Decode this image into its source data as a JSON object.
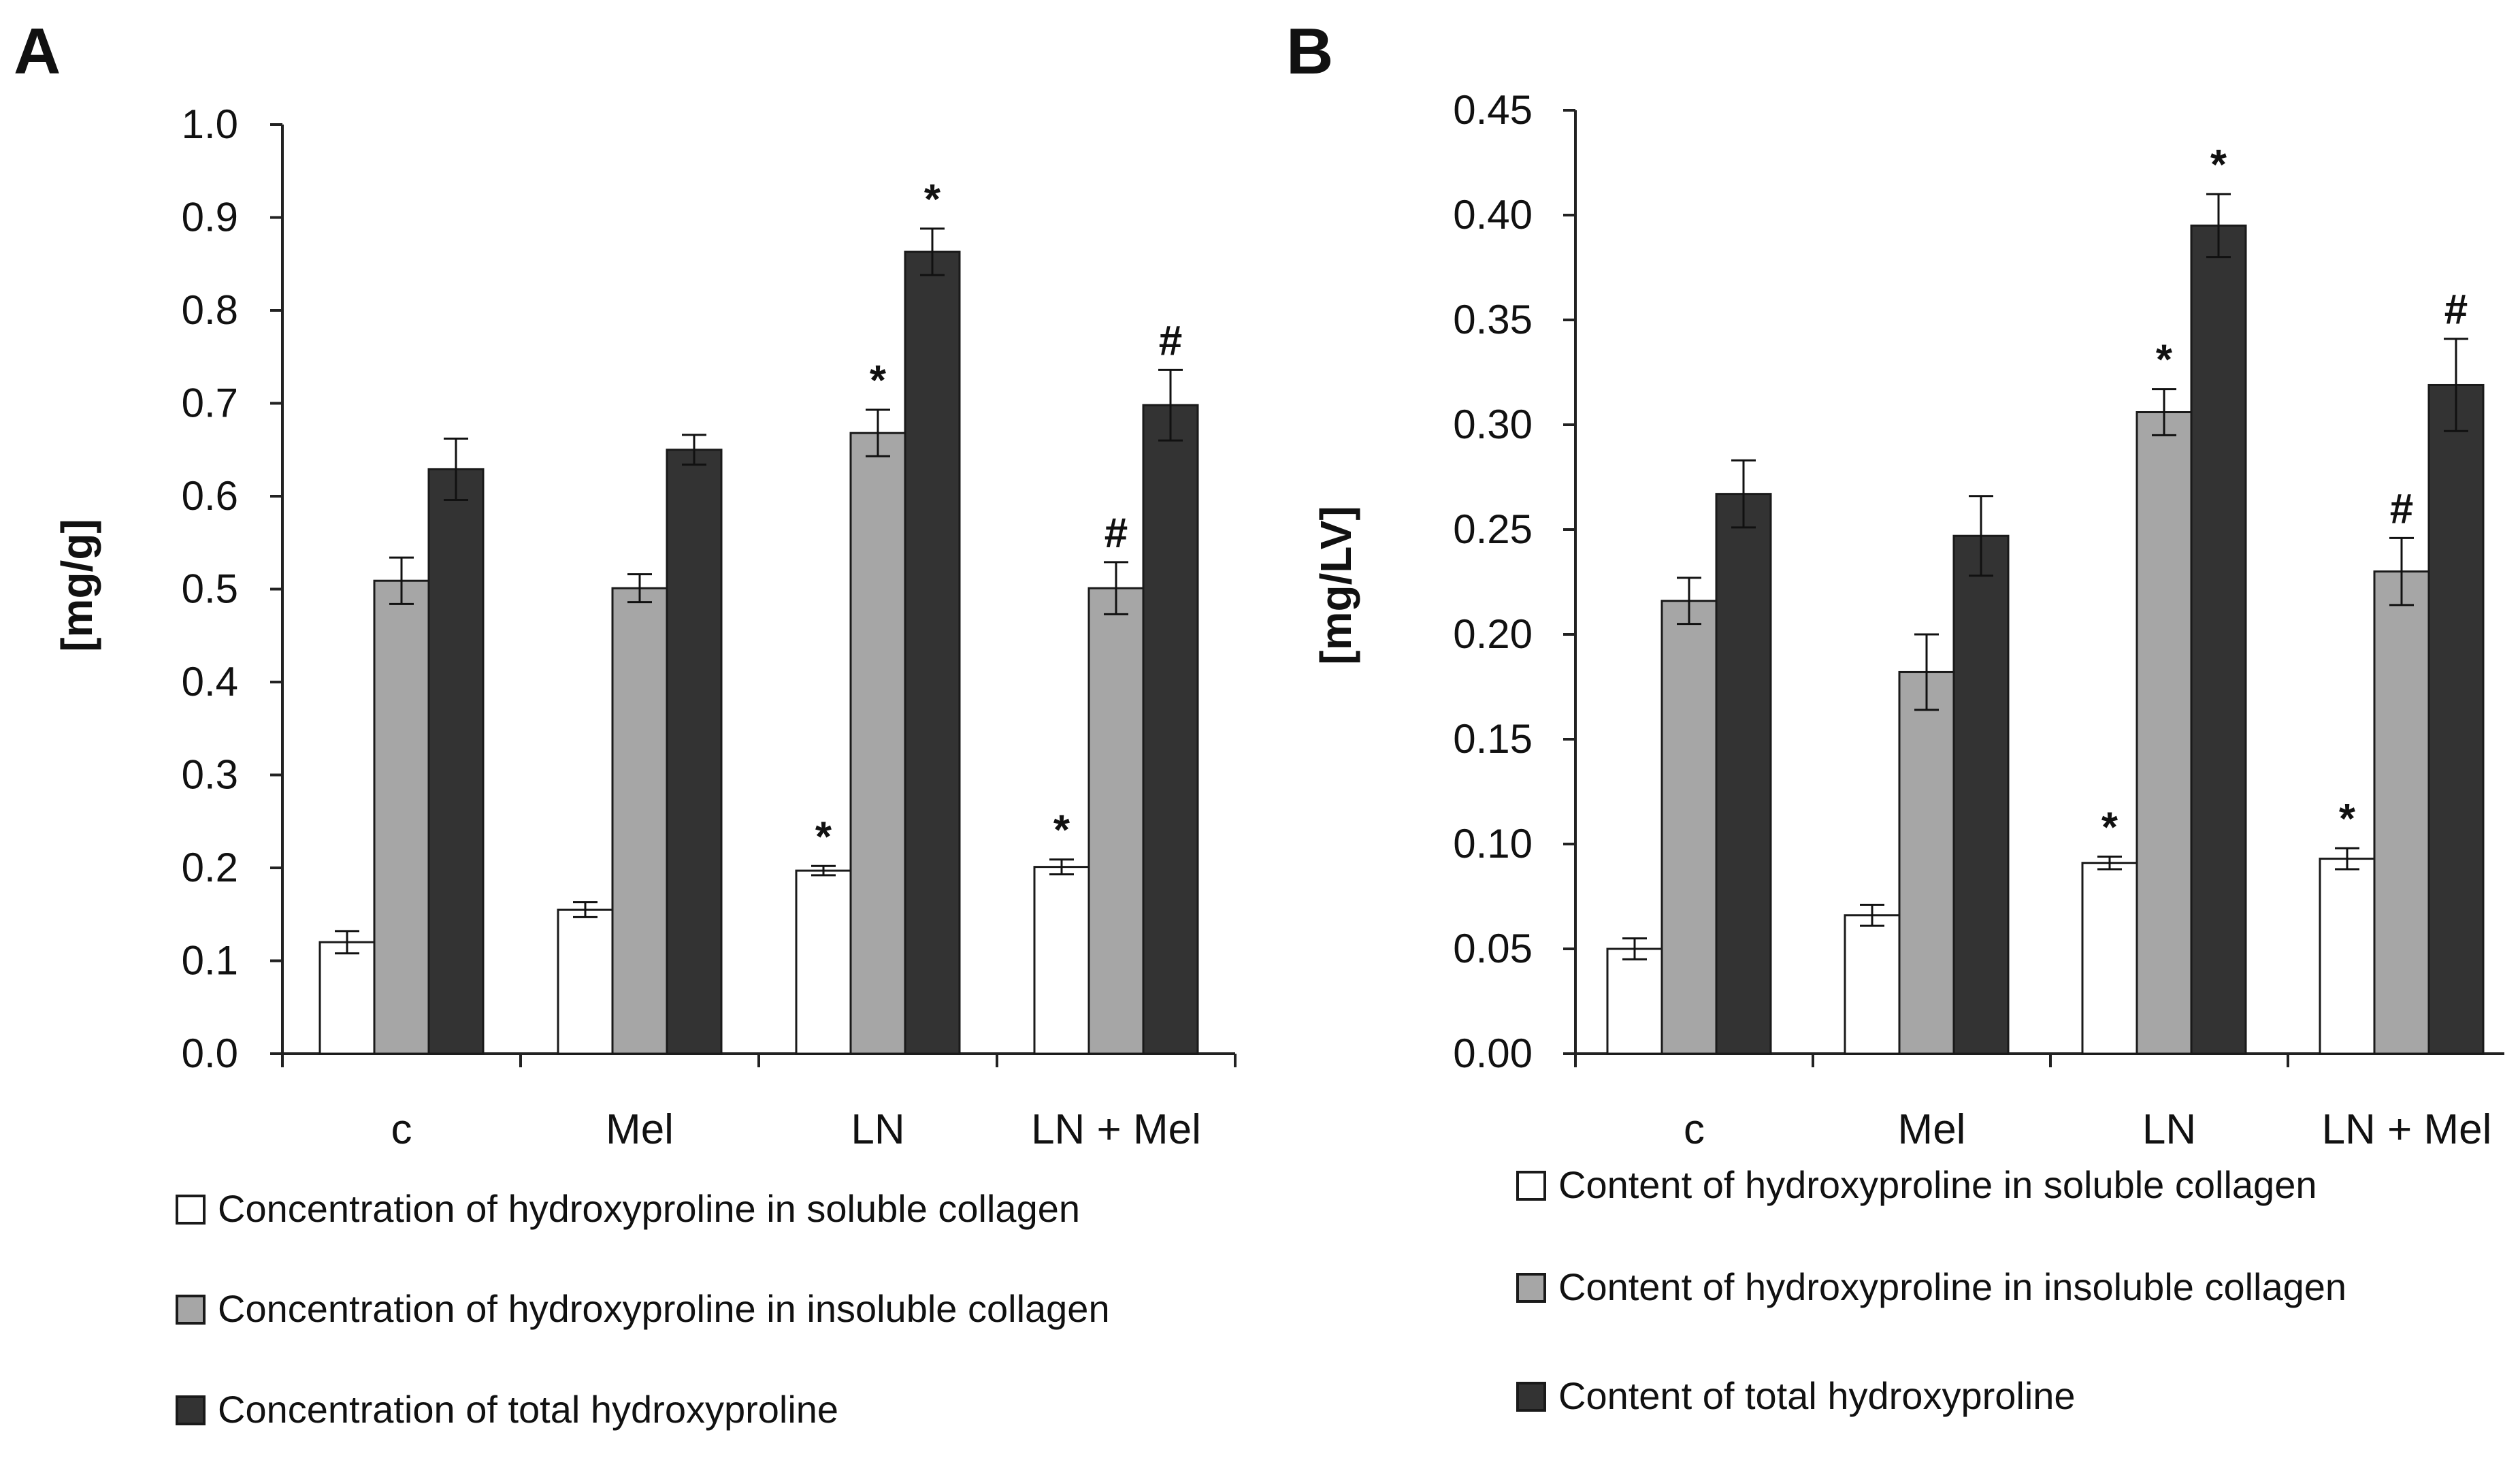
{
  "colors": {
    "soluble": "#ffffff",
    "insoluble": "#a6a6a6",
    "total": "#333333",
    "axis": "#222222",
    "outline": "#1a1a1a"
  },
  "chart_data": [
    {
      "type": "bar",
      "panel": "A",
      "title": "",
      "xlabel": "",
      "ylabel": "[mg/g]",
      "ylim": [
        0,
        1.0
      ],
      "yticks": [
        "0.0",
        "0.1",
        "0.2",
        "0.3",
        "0.4",
        "0.5",
        "0.6",
        "0.7",
        "0.8",
        "0.9",
        "1.0"
      ],
      "categories": [
        "c",
        "Mel",
        "LN",
        "LN + Mel"
      ],
      "series": [
        {
          "name": "Concentration of hydroxyproline in soluble collagen",
          "color_key": "soluble",
          "values": [
            0.12,
            0.155,
            0.197,
            0.201
          ],
          "errors": [
            0.012,
            0.008,
            0.005,
            0.008
          ],
          "annotations": [
            "",
            "",
            "*",
            "*"
          ]
        },
        {
          "name": "Concentration of hydroxyproline in insoluble collagen",
          "color_key": "insoluble",
          "values": [
            0.509,
            0.501,
            0.668,
            0.501
          ],
          "errors": [
            0.025,
            0.015,
            0.025,
            0.028
          ],
          "annotations": [
            "",
            "",
            "*",
            "#"
          ]
        },
        {
          "name": "Concentration of total hydroxyproline",
          "color_key": "total",
          "values": [
            0.629,
            0.65,
            0.863,
            0.698
          ],
          "errors": [
            0.033,
            0.016,
            0.025,
            0.038
          ],
          "annotations": [
            "",
            "",
            "*",
            "#"
          ]
        }
      ]
    },
    {
      "type": "bar",
      "panel": "B",
      "title": "",
      "xlabel": "",
      "ylabel": "[mg/LV]",
      "ylim": [
        0,
        0.45
      ],
      "yticks": [
        "0.00",
        "0.05",
        "0.10",
        "0.15",
        "0.20",
        "0.25",
        "0.30",
        "0.35",
        "0.40",
        "0.45"
      ],
      "categories": [
        "c",
        "Mel",
        "LN",
        "LN + Mel"
      ],
      "series": [
        {
          "name": "Content of hydroxyproline in soluble collagen",
          "color_key": "soluble",
          "values": [
            0.05,
            0.066,
            0.091,
            0.093
          ],
          "errors": [
            0.005,
            0.005,
            0.003,
            0.005
          ],
          "annotations": [
            "",
            "",
            "*",
            "*"
          ]
        },
        {
          "name": "Content of hydroxyproline in insoluble collagen",
          "color_key": "insoluble",
          "values": [
            0.216,
            0.182,
            0.306,
            0.23
          ],
          "errors": [
            0.011,
            0.018,
            0.011,
            0.016
          ],
          "annotations": [
            "",
            "",
            "*",
            "#"
          ]
        },
        {
          "name": "Content of total hydroxyproline",
          "color_key": "total",
          "values": [
            0.267,
            0.247,
            0.395,
            0.319
          ],
          "errors": [
            0.016,
            0.019,
            0.015,
            0.022
          ],
          "annotations": [
            "",
            "",
            "*",
            "#"
          ]
        }
      ]
    }
  ]
}
